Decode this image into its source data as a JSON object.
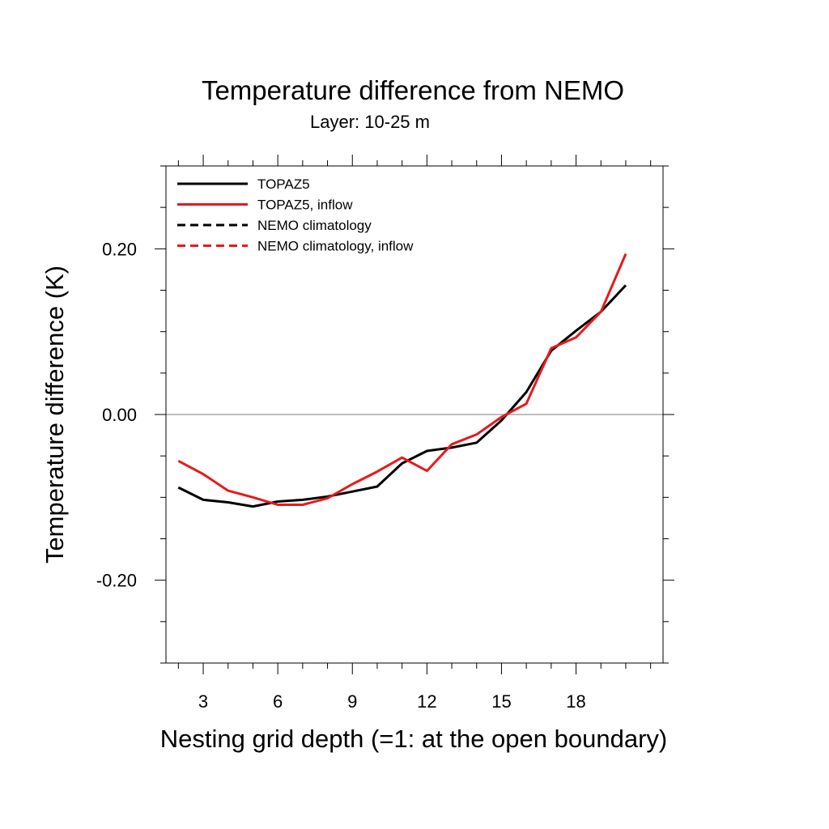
{
  "chart_data": {
    "type": "line",
    "title": "Temperature difference from NEMO",
    "subtitle": "Layer: 10-25 m",
    "xlabel": "Nesting grid depth (=1: at the open boundary)",
    "ylabel": "Temperature difference (K)",
    "xlim": [
      1.5,
      21.5
    ],
    "ylim": [
      -0.3,
      0.3
    ],
    "x_ticks": [
      3,
      6,
      9,
      12,
      15,
      18
    ],
    "x_tick_labels": [
      "3",
      "6",
      "9",
      "12",
      "15",
      "18"
    ],
    "y_ticks": [
      -0.2,
      0.0,
      0.2
    ],
    "y_tick_labels": [
      "-0.20",
      "0.00",
      "0.20"
    ],
    "x_minor_step": 1,
    "y_minor_step": 0.05,
    "zero_line": true,
    "grid": false,
    "legend_position": "top-left",
    "series": [
      {
        "name": "TOPAZ5",
        "color": "#000000",
        "dash": "solid",
        "x": [
          2,
          3,
          4,
          5,
          6,
          7,
          8,
          9,
          10,
          11,
          12,
          13,
          14,
          15,
          16,
          17,
          18,
          19,
          20
        ],
        "values": [
          -0.088,
          -0.103,
          -0.106,
          -0.111,
          -0.105,
          -0.103,
          -0.099,
          -0.093,
          -0.087,
          -0.059,
          -0.044,
          -0.04,
          -0.034,
          -0.007,
          0.027,
          0.077,
          0.101,
          0.124,
          0.156
        ]
      },
      {
        "name": "TOPAZ5, inflow",
        "color": "#e8191c",
        "dash": "solid",
        "x": [
          2,
          3,
          4,
          5,
          6,
          7,
          8,
          9,
          10,
          11,
          12,
          13,
          14,
          15,
          16,
          17,
          18,
          19,
          20
        ],
        "values": [
          -0.056,
          -0.072,
          -0.092,
          -0.1,
          -0.109,
          -0.109,
          -0.101,
          -0.084,
          -0.069,
          -0.052,
          -0.068,
          -0.036,
          -0.024,
          -0.003,
          0.013,
          0.08,
          0.093,
          0.124,
          0.194
        ]
      },
      {
        "name": "NEMO climatology",
        "color": "#000000",
        "dash": "dashed",
        "x": [],
        "values": []
      },
      {
        "name": "NEMO climatology, inflow",
        "color": "#e8191c",
        "dash": "dashed",
        "x": [],
        "values": []
      }
    ]
  }
}
